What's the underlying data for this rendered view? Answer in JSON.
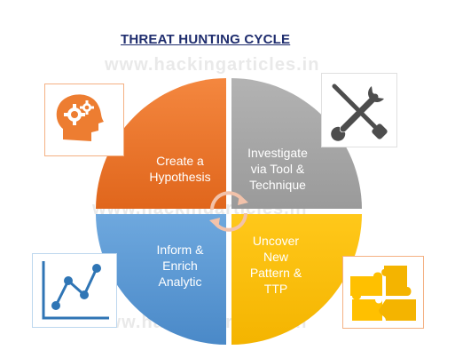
{
  "title": "THREAT HUNTING CYCLE",
  "watermark": "www.hackingarticles.in",
  "quadrants": [
    {
      "id": "hypothesis",
      "lines": [
        "Create a",
        "Hypothesis"
      ],
      "color": "#ed7d31"
    },
    {
      "id": "investigate",
      "lines": [
        "Investigate",
        "via Tool &",
        "Technique"
      ],
      "color": "#a5a5a5"
    },
    {
      "id": "uncover",
      "lines": [
        "Uncover",
        "New",
        "Pattern &",
        "TTP"
      ],
      "color": "#ffc000"
    },
    {
      "id": "inform",
      "lines": [
        "Inform &",
        "Enrich",
        "Analytic"
      ],
      "color": "#5b9bd5"
    }
  ],
  "icons": [
    {
      "id": "head-gears",
      "name": "head-gears-icon"
    },
    {
      "id": "tools",
      "name": "wrench-screwdriver-icon"
    },
    {
      "id": "puzzle",
      "name": "puzzle-icon"
    },
    {
      "id": "chart",
      "name": "line-chart-icon"
    }
  ],
  "colors": {
    "title": "#1f2d6e",
    "orange": "#ed7d31",
    "gray": "#a5a5a5",
    "yellow": "#ffc000",
    "blue": "#5b9bd5",
    "frame": "#f4b183"
  }
}
